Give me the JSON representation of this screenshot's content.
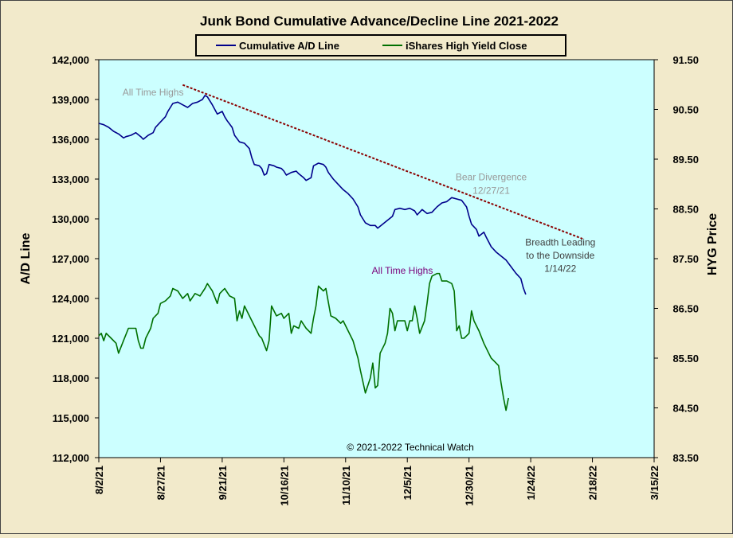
{
  "chart_data": {
    "type": "line",
    "title": "Junk Bond Cumulative Advance/Decline Line 2021-2022",
    "ylabel": "A/D Line",
    "y2label": "HYG Price",
    "copyright": "© 2021-2022 Technical Watch",
    "colors": {
      "background": "#f2eacb",
      "plot_bg": "#ccffff",
      "ad_line": "#00008b",
      "hyg_line": "#007000",
      "trendline": "#8b0000",
      "annotation_gray": "#999999",
      "annotation_purple": "#7a007a",
      "annotation_dark": "#404040"
    },
    "y_left": {
      "min": 112000,
      "max": 142000,
      "step": 3000,
      "ticks": [
        "112,000",
        "115,000",
        "118,000",
        "121,000",
        "124,000",
        "127,000",
        "130,000",
        "133,000",
        "136,000",
        "139,000",
        "142,000"
      ]
    },
    "y_right": {
      "min": 83.5,
      "max": 91.5,
      "step": 1,
      "ticks": [
        "83.50",
        "84.50",
        "85.50",
        "86.50",
        "87.50",
        "88.50",
        "89.50",
        "90.50",
        "91.50"
      ]
    },
    "x_ticks": [
      "8/2/21",
      "8/27/21",
      "9/21/21",
      "10/16/21",
      "11/10/21",
      "12/5/21",
      "12/30/21",
      "1/24/22",
      "2/18/22",
      "3/15/22"
    ],
    "x_range_days": [
      0,
      225
    ],
    "legend": {
      "placement": "top-center",
      "items": [
        "Cumulative A/D Line",
        "iShares High Yield Close"
      ]
    },
    "series": [
      {
        "name": "Cumulative A/D Line",
        "axis": "left",
        "values": [
          [
            0,
            137200
          ],
          [
            2,
            137100
          ],
          [
            4,
            136900
          ],
          [
            6,
            136600
          ],
          [
            8,
            136400
          ],
          [
            10,
            136100
          ],
          [
            11,
            136200
          ],
          [
            13,
            136300
          ],
          [
            15,
            136500
          ],
          [
            17,
            136200
          ],
          [
            18,
            136000
          ],
          [
            20,
            136300
          ],
          [
            22,
            136500
          ],
          [
            23,
            136900
          ],
          [
            25,
            137300
          ],
          [
            27,
            137700
          ],
          [
            28,
            138100
          ],
          [
            30,
            138700
          ],
          [
            32,
            138800
          ],
          [
            34,
            138600
          ],
          [
            36,
            138400
          ],
          [
            38,
            138700
          ],
          [
            40,
            138800
          ],
          [
            42,
            139000
          ],
          [
            43,
            139300
          ],
          [
            44,
            139200
          ],
          [
            45,
            138900
          ],
          [
            46,
            138600
          ],
          [
            48,
            137900
          ],
          [
            50,
            138100
          ],
          [
            51,
            137700
          ],
          [
            52,
            137400
          ],
          [
            54,
            136900
          ],
          [
            55,
            136300
          ],
          [
            57,
            135800
          ],
          [
            59,
            135700
          ],
          [
            61,
            135300
          ],
          [
            62,
            134600
          ],
          [
            63,
            134100
          ],
          [
            65,
            134000
          ],
          [
            66,
            133800
          ],
          [
            67,
            133300
          ],
          [
            68,
            133400
          ],
          [
            69,
            134100
          ],
          [
            71,
            134000
          ],
          [
            72,
            133900
          ],
          [
            74,
            133800
          ],
          [
            75,
            133600
          ],
          [
            76,
            133300
          ],
          [
            78,
            133500
          ],
          [
            80,
            133600
          ],
          [
            81,
            133400
          ],
          [
            83,
            133100
          ],
          [
            84,
            132900
          ],
          [
            86,
            133100
          ],
          [
            87,
            134000
          ],
          [
            89,
            134200
          ],
          [
            91,
            134100
          ],
          [
            92,
            133900
          ],
          [
            93,
            133500
          ],
          [
            95,
            133000
          ],
          [
            97,
            132600
          ],
          [
            99,
            132200
          ],
          [
            101,
            131900
          ],
          [
            103,
            131500
          ],
          [
            105,
            130900
          ],
          [
            106,
            130300
          ],
          [
            108,
            129700
          ],
          [
            110,
            129500
          ],
          [
            112,
            129500
          ],
          [
            113,
            129300
          ],
          [
            115,
            129600
          ],
          [
            117,
            129900
          ],
          [
            119,
            130200
          ],
          [
            120,
            130700
          ],
          [
            122,
            130800
          ],
          [
            124,
            130700
          ],
          [
            126,
            130800
          ],
          [
            128,
            130600
          ],
          [
            129,
            130300
          ],
          [
            131,
            130700
          ],
          [
            133,
            130400
          ],
          [
            135,
            130500
          ],
          [
            137,
            130900
          ],
          [
            139,
            131200
          ],
          [
            141,
            131300
          ],
          [
            143,
            131600
          ],
          [
            145,
            131500
          ],
          [
            147,
            131400
          ],
          [
            149,
            130900
          ],
          [
            150,
            130200
          ],
          [
            151,
            129600
          ],
          [
            153,
            129200
          ],
          [
            154,
            128700
          ],
          [
            156,
            129000
          ],
          [
            157,
            128600
          ],
          [
            159,
            127900
          ],
          [
            161,
            127500
          ],
          [
            163,
            127200
          ],
          [
            165,
            126900
          ],
          [
            167,
            126400
          ],
          [
            169,
            125900
          ],
          [
            171,
            125500
          ],
          [
            172,
            124800
          ],
          [
            173,
            124300
          ]
        ]
      },
      {
        "name": "iShares High Yield Close",
        "axis": "right",
        "values": [
          [
            0,
            85.95
          ],
          [
            1,
            86.0
          ],
          [
            2,
            85.85
          ],
          [
            3,
            86.0
          ],
          [
            5,
            85.9
          ],
          [
            7,
            85.8
          ],
          [
            8,
            85.6
          ],
          [
            10,
            85.85
          ],
          [
            12,
            86.1
          ],
          [
            14,
            86.1
          ],
          [
            15,
            86.1
          ],
          [
            16,
            85.85
          ],
          [
            17,
            85.7
          ],
          [
            18,
            85.7
          ],
          [
            19,
            85.9
          ],
          [
            21,
            86.1
          ],
          [
            22,
            86.3
          ],
          [
            24,
            86.4
          ],
          [
            25,
            86.6
          ],
          [
            27,
            86.65
          ],
          [
            29,
            86.75
          ],
          [
            30,
            86.9
          ],
          [
            32,
            86.85
          ],
          [
            34,
            86.7
          ],
          [
            36,
            86.8
          ],
          [
            37,
            86.65
          ],
          [
            39,
            86.8
          ],
          [
            41,
            86.75
          ],
          [
            43,
            86.9
          ],
          [
            44,
            87.0
          ],
          [
            46,
            86.85
          ],
          [
            48,
            86.6
          ],
          [
            49,
            86.8
          ],
          [
            51,
            86.9
          ],
          [
            53,
            86.75
          ],
          [
            55,
            86.7
          ],
          [
            56,
            86.25
          ],
          [
            57,
            86.45
          ],
          [
            58,
            86.3
          ],
          [
            59,
            86.55
          ],
          [
            61,
            86.35
          ],
          [
            63,
            86.15
          ],
          [
            65,
            85.95
          ],
          [
            66,
            85.9
          ],
          [
            68,
            85.65
          ],
          [
            69,
            85.85
          ],
          [
            70,
            86.55
          ],
          [
            72,
            86.35
          ],
          [
            74,
            86.4
          ],
          [
            75,
            86.3
          ],
          [
            77,
            86.4
          ],
          [
            78,
            86.0
          ],
          [
            79,
            86.15
          ],
          [
            81,
            86.1
          ],
          [
            82,
            86.25
          ],
          [
            84,
            86.1
          ],
          [
            85,
            86.05
          ],
          [
            86,
            86.0
          ],
          [
            87,
            86.3
          ],
          [
            88,
            86.55
          ],
          [
            89,
            86.95
          ],
          [
            90,
            86.9
          ],
          [
            91,
            86.85
          ],
          [
            92,
            86.9
          ],
          [
            94,
            86.35
          ],
          [
            96,
            86.3
          ],
          [
            98,
            86.2
          ],
          [
            99,
            86.25
          ],
          [
            101,
            86.05
          ],
          [
            103,
            85.85
          ],
          [
            105,
            85.5
          ],
          [
            106,
            85.25
          ],
          [
            108,
            84.8
          ],
          [
            110,
            85.1
          ],
          [
            111,
            85.4
          ],
          [
            112,
            84.9
          ],
          [
            113,
            84.95
          ],
          [
            114,
            85.6
          ],
          [
            116,
            85.8
          ],
          [
            117,
            86.0
          ],
          [
            118,
            86.5
          ],
          [
            119,
            86.4
          ],
          [
            120,
            86.05
          ],
          [
            121,
            86.25
          ],
          [
            122,
            86.25
          ],
          [
            124,
            86.25
          ],
          [
            125,
            86.05
          ],
          [
            126,
            86.25
          ],
          [
            127,
            86.25
          ],
          [
            128,
            86.55
          ],
          [
            129,
            86.3
          ],
          [
            130,
            86.0
          ],
          [
            132,
            86.25
          ],
          [
            133,
            86.6
          ],
          [
            134,
            87.0
          ],
          [
            135,
            87.15
          ],
          [
            137,
            87.2
          ],
          [
            138,
            87.2
          ],
          [
            139,
            87.05
          ],
          [
            141,
            87.05
          ],
          [
            143,
            87.0
          ],
          [
            144,
            86.85
          ],
          [
            145,
            86.05
          ],
          [
            146,
            86.15
          ],
          [
            147,
            85.9
          ],
          [
            148,
            85.9
          ],
          [
            149,
            85.95
          ],
          [
            150,
            86.0
          ],
          [
            151,
            86.45
          ],
          [
            152,
            86.25
          ],
          [
            154,
            86.05
          ],
          [
            156,
            85.8
          ],
          [
            158,
            85.6
          ],
          [
            159,
            85.5
          ],
          [
            160,
            85.45
          ],
          [
            162,
            85.35
          ],
          [
            163,
            85.0
          ],
          [
            164,
            84.7
          ],
          [
            165,
            84.45
          ],
          [
            166,
            84.7
          ]
        ]
      }
    ],
    "trendline": {
      "from": [
        34,
        140100
      ],
      "to": [
        196,
        128500
      ]
    },
    "annotations": [
      {
        "text": "All Time Highs",
        "x": 22,
        "value": 139300,
        "axis": "left",
        "color_key": "annotation_gray"
      },
      {
        "text": "Bear Divergence",
        "x": 159,
        "value": 132900,
        "axis": "left",
        "color_key": "annotation_gray"
      },
      {
        "text": "12/27/21",
        "x": 159,
        "value": 131900,
        "axis": "left",
        "color_key": "annotation_gray"
      },
      {
        "text": "Breadth Leading",
        "x": 187,
        "value": 128000,
        "axis": "left",
        "color_key": "annotation_dark"
      },
      {
        "text": "to the Downside",
        "x": 187,
        "value": 127000,
        "axis": "left",
        "color_key": "annotation_dark"
      },
      {
        "text": "1/14/22",
        "x": 187,
        "value": 126000,
        "axis": "left",
        "color_key": "annotation_dark"
      },
      {
        "text": "All Time Highs",
        "x": 123,
        "value": 87.2,
        "axis": "right",
        "color_key": "annotation_purple"
      }
    ]
  }
}
